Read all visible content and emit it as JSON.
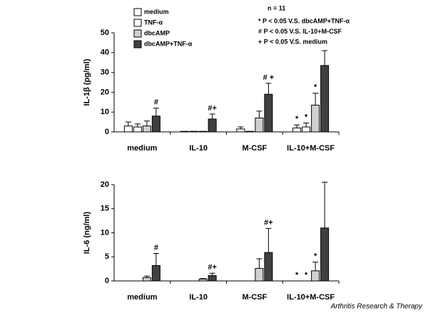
{
  "chart_data": [
    {
      "type": "bar",
      "ylabel": "IL-1β (pg/ml)",
      "categories": [
        "medium",
        "IL-10",
        "M-CSF",
        "IL-10+M-CSF"
      ],
      "ylim": [
        0,
        50
      ],
      "yticks": [
        0,
        10,
        20,
        30,
        40,
        50
      ],
      "notes": [
        "n = 11",
        "* P < 0.05 V.S. dbcAMP+TNF-α",
        "# P < 0.05 V.S. IL-10+M-CSF",
        "+ P < 0.05 V.S. medium"
      ],
      "series": [
        {
          "name": "medium",
          "color": "#ffffff",
          "values": [
            3,
            0.3,
            1.5,
            2
          ],
          "errors": [
            2,
            0,
            1,
            1.5
          ],
          "labels": [
            null,
            null,
            null,
            "*"
          ]
        },
        {
          "name": "TNF-α",
          "color": "#ffffff",
          "values": [
            2.5,
            0.3,
            0.3,
            2.5
          ],
          "errors": [
            1.5,
            0,
            0,
            2
          ],
          "labels": [
            null,
            null,
            null,
            "*"
          ]
        },
        {
          "name": "dbcAMP",
          "color": "#d0d0d0",
          "values": [
            3,
            0.3,
            7,
            13.5
          ],
          "errors": [
            2.5,
            0,
            3.5,
            6
          ],
          "labels": [
            null,
            null,
            null,
            "*"
          ]
        },
        {
          "name": "dbcAMP+TNF-α",
          "color": "#404040",
          "values": [
            8,
            6.5,
            19,
            33.5
          ],
          "errors": [
            4,
            2.5,
            5.5,
            7.5
          ],
          "labels": [
            "#",
            "#+",
            "# +",
            null
          ]
        }
      ]
    },
    {
      "type": "bar",
      "ylabel": "IL-6 (ng/ml)",
      "categories": [
        "medium",
        "IL-10",
        "M-CSF",
        "IL-10+M-CSF"
      ],
      "ylim": [
        0,
        20
      ],
      "yticks": [
        0,
        5,
        10,
        15,
        20
      ],
      "series": [
        {
          "color": "#ffffff",
          "values": [
            0,
            0,
            0,
            0
          ],
          "errors": [
            0,
            0,
            0,
            0
          ],
          "labels": [
            null,
            null,
            null,
            "*"
          ]
        },
        {
          "color": "#ffffff",
          "values": [
            0,
            0,
            0,
            0
          ],
          "errors": [
            0,
            0,
            0,
            0
          ],
          "labels": [
            null,
            null,
            null,
            "*"
          ]
        },
        {
          "color": "#d0d0d0",
          "values": [
            0.7,
            0.4,
            2.6,
            2.1
          ],
          "errors": [
            0.3,
            0.1,
            2,
            1.8
          ],
          "labels": [
            null,
            null,
            null,
            "*"
          ]
        },
        {
          "color": "#404040",
          "values": [
            3.2,
            1.1,
            5.9,
            11
          ],
          "errors": [
            2.5,
            0.5,
            5,
            9.5
          ],
          "labels": [
            "#",
            "#+",
            "#+",
            null
          ]
        }
      ]
    }
  ],
  "footer": "Arthritis Research & Therapy"
}
